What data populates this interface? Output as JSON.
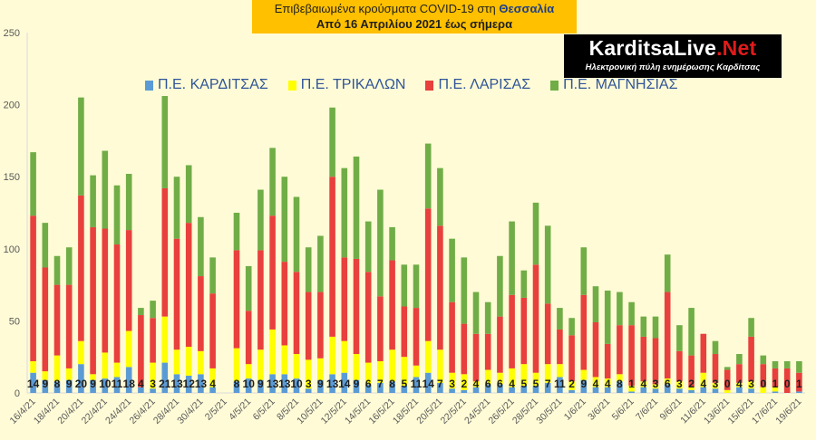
{
  "header": {
    "title_prefix": "Επιβεβαιωμένα κρούσματα COVID-19 στη ",
    "title_region": "Θεσσαλία",
    "subtitle": "Από 16 Απριλίου 2021 έως σήμερα"
  },
  "logo": {
    "name_part1": "KarditsaLive",
    "name_part2": ".Net",
    "tagline": "Ηλεκτρονική πύλη ενημέρωσης Καρδίτσας"
  },
  "colors": {
    "karditsa": "#5b9bd5",
    "trikala": "#ffff00",
    "larisa": "#e8403d",
    "magnisia": "#70ad47",
    "background": "#fffbd6",
    "axis_text": "#595959",
    "grid": "#d9d9d9"
  },
  "chart_data": {
    "type": "bar",
    "stacked": true,
    "ylim": [
      0,
      250
    ],
    "yticks": [
      0,
      50,
      100,
      150,
      200,
      250
    ],
    "grid": false,
    "legend_placement": "top-left",
    "categories": [
      "16/4/21",
      "17/4/21",
      "18/4/21",
      "19/4/21",
      "20/4/21",
      "21/4/21",
      "22/4/21",
      "23/4/21",
      "24/4/21",
      "25/4/21",
      "26/4/21",
      "27/4/21",
      "28/4/21",
      "29/4/21",
      "30/4/21",
      "1/5/21",
      "2/5/21",
      "3/5/21",
      "4/5/21",
      "5/5/21",
      "6/5/21",
      "7/5/21",
      "8/5/21",
      "9/5/21",
      "10/5/21",
      "11/5/21",
      "12/5/21",
      "13/5/21",
      "14/5/21",
      "15/5/21",
      "16/5/21",
      "17/5/21",
      "18/5/21",
      "19/5/21",
      "20/5/21",
      "21/5/21",
      "22/5/21",
      "23/5/21",
      "24/5/21",
      "25/5/21",
      "26/5/21",
      "27/5/21",
      "28/5/21",
      "29/5/21",
      "30/5/21",
      "31/5/21",
      "1/6/21",
      "2/6/21",
      "3/6/21",
      "4/6/21",
      "5/6/21",
      "6/6/21",
      "7/6/21",
      "8/6/21",
      "9/6/21",
      "10/6/21",
      "11/6/21",
      "12/6/21",
      "13/6/21",
      "14/6/21",
      "15/6/21",
      "16/6/21",
      "17/6/21",
      "18/6/21",
      "19/6/21"
    ],
    "xtick_labels": [
      "16/4/21",
      "18/4/21",
      "20/4/21",
      "22/4/21",
      "24/4/21",
      "26/4/21",
      "28/4/21",
      "30/4/21",
      "2/5/21",
      "4/5/21",
      "6/5/21",
      "8/5/21",
      "10/5/21",
      "12/5/21",
      "14/5/21",
      "16/5/21",
      "18/5/21",
      "20/5/21",
      "22/5/21",
      "24/5/21",
      "26/5/21",
      "28/5/21",
      "30/5/21",
      "1/6/21",
      "3/6/21",
      "5/6/21",
      "7/6/21",
      "9/6/21",
      "11/6/21",
      "13/6/21",
      "15/6/21",
      "17/6/21",
      "19/6/21"
    ],
    "series": [
      {
        "name": "Π.Ε. ΚΑΡΔΙΤΣΑΣ",
        "values": [
          14,
          9,
          8,
          9,
          20,
          9,
          10,
          11,
          18,
          4,
          3,
          21,
          13,
          12,
          13,
          4,
          null,
          8,
          10,
          9,
          13,
          13,
          10,
          3,
          9,
          13,
          14,
          9,
          6,
          7,
          8,
          5,
          11,
          14,
          7,
          3,
          2,
          4,
          6,
          6,
          4,
          5,
          5,
          7,
          11,
          2,
          9,
          4,
          4,
          8,
          1,
          4,
          3,
          6,
          3,
          2,
          4,
          3,
          0,
          4,
          3,
          0,
          1,
          0,
          1
        ]
      },
      {
        "name": "Π.Ε. ΤΡΙΚΑΛΩΝ",
        "values": [
          8,
          6,
          18,
          8,
          16,
          4,
          18,
          10,
          25,
          0,
          18,
          32,
          17,
          20,
          16,
          13,
          null,
          23,
          10,
          21,
          31,
          20,
          17,
          20,
          15,
          26,
          22,
          18,
          15,
          15,
          22,
          20,
          8,
          22,
          23,
          11,
          11,
          4,
          10,
          8,
          13,
          15,
          9,
          13,
          9,
          6,
          7,
          7,
          6,
          5,
          4,
          4,
          3,
          4,
          5,
          2,
          10,
          4,
          2,
          3,
          5,
          4,
          3,
          0,
          0
        ]
      },
      {
        "name": "Π.Ε. ΛΑΡΙΣΑΣ",
        "values": [
          101,
          72,
          49,
          58,
          101,
          102,
          86,
          82,
          70,
          50,
          31,
          89,
          77,
          86,
          52,
          52,
          null,
          68,
          37,
          69,
          79,
          58,
          57,
          47,
          46,
          111,
          58,
          66,
          63,
          45,
          62,
          35,
          40,
          92,
          86,
          49,
          35,
          33,
          25,
          39,
          51,
          46,
          75,
          42,
          24,
          32,
          52,
          38,
          24,
          34,
          42,
          31,
          32,
          60,
          21,
          22,
          27,
          20,
          14,
          13,
          31,
          16,
          13,
          17,
          13
        ]
      },
      {
        "name": "Π.Ε. ΜΑΓΝΗΣΙΑΣ",
        "values": [
          44,
          31,
          20,
          26,
          68,
          36,
          54,
          41,
          39,
          5,
          12,
          64,
          43,
          40,
          41,
          25,
          null,
          26,
          31,
          42,
          47,
          59,
          52,
          31,
          39,
          48,
          62,
          71,
          35,
          74,
          23,
          29,
          30,
          45,
          40,
          44,
          46,
          29,
          22,
          42,
          51,
          19,
          43,
          54,
          15,
          12,
          33,
          25,
          37,
          23,
          16,
          14,
          15,
          26,
          18,
          33,
          0,
          9,
          2,
          7,
          13,
          6,
          5,
          5,
          8
        ]
      }
    ],
    "data_labels": [
      14,
      9,
      8,
      9,
      20,
      9,
      10,
      11,
      18,
      4,
      3,
      21,
      13,
      12,
      13,
      4,
      "",
      8,
      10,
      9,
      13,
      13,
      10,
      3,
      9,
      13,
      14,
      9,
      6,
      7,
      8,
      5,
      11,
      14,
      7,
      3,
      2,
      4,
      6,
      6,
      4,
      5,
      5,
      7,
      11,
      2,
      9,
      4,
      4,
      8,
      1,
      4,
      3,
      6,
      3,
      2,
      4,
      3,
      0,
      4,
      3,
      0,
      1,
      0,
      1
    ]
  }
}
